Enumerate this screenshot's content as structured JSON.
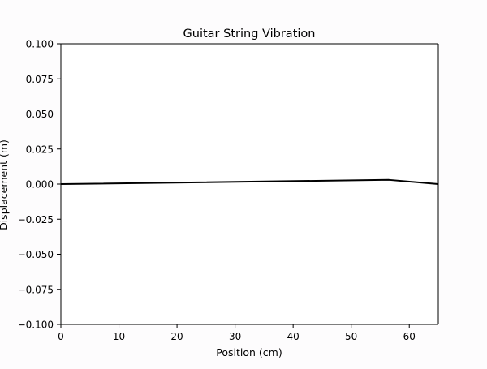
{
  "chart_data": {
    "type": "line",
    "title": "Guitar String Vibration",
    "xlabel": "Position (cm)",
    "ylabel": "Displacement (m)",
    "xlim": [
      0,
      65
    ],
    "ylim": [
      -0.1,
      0.1
    ],
    "xticks": [
      0,
      10,
      20,
      30,
      40,
      50,
      60
    ],
    "xtick_labels": [
      "0",
      "10",
      "20",
      "30",
      "40",
      "50",
      "60"
    ],
    "yticks": [
      0.1,
      0.075,
      0.05,
      0.025,
      0.0,
      -0.025,
      -0.05,
      -0.075,
      -0.1
    ],
    "ytick_labels": [
      "0.100",
      "0.075",
      "0.050",
      "0.025",
      "0.000",
      "−0.025",
      "−0.050",
      "−0.075",
      "−0.100"
    ],
    "grid": false,
    "series": [
      {
        "color": "#000000",
        "x": [
          0,
          56.5,
          65
        ],
        "y": [
          0.0,
          0.003,
          0.0
        ]
      }
    ]
  }
}
